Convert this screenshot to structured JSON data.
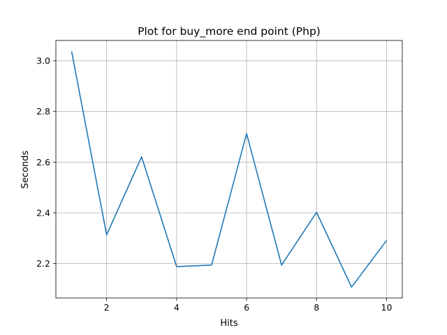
{
  "chart_data": {
    "type": "line",
    "title": "Plot for buy_more end point (Php)",
    "xlabel": "Hits",
    "ylabel": "Seconds",
    "xlim": [
      0.55,
      10.45
    ],
    "ylim": [
      2.064,
      3.08
    ],
    "x_ticks": [
      2,
      4,
      6,
      8,
      10
    ],
    "y_ticks": [
      2.2,
      2.4,
      2.6,
      2.8,
      3.0
    ],
    "y_tick_labels": [
      "2.2",
      "2.4",
      "2.6",
      "2.8",
      "3.0"
    ],
    "grid": true,
    "legend": false,
    "series": [
      {
        "color": "#1f77b4",
        "x": [
          1,
          2,
          3,
          4,
          5,
          6,
          7,
          8,
          9,
          10
        ],
        "values": [
          3.037,
          2.313,
          2.621,
          2.188,
          2.194,
          2.713,
          2.194,
          2.402,
          2.107,
          2.291
        ]
      }
    ]
  }
}
